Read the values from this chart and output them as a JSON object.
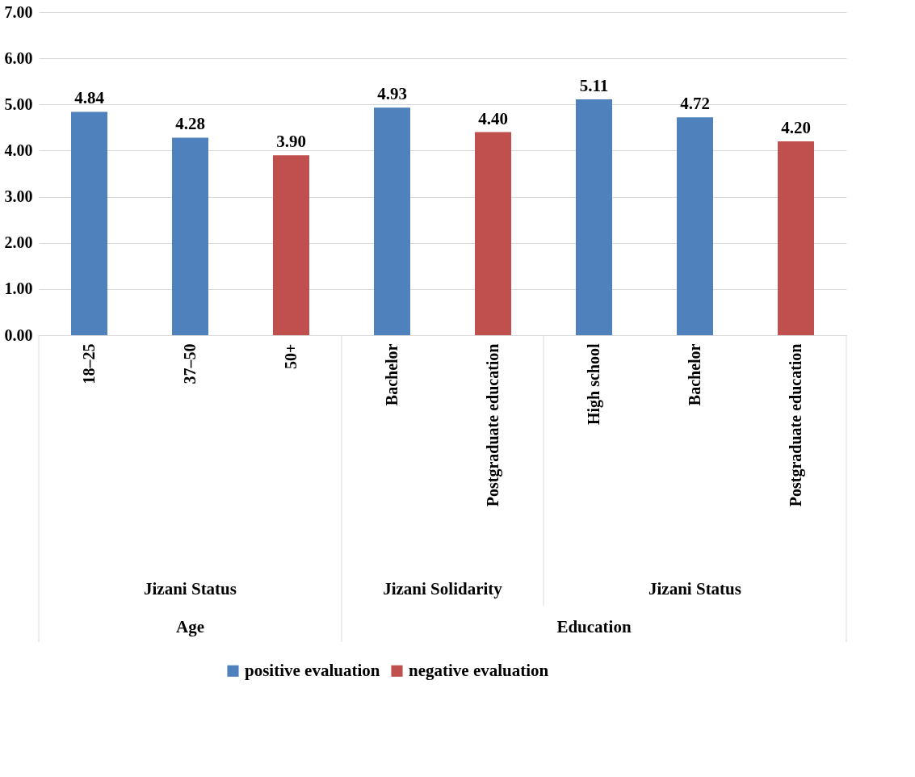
{
  "chart_data": {
    "type": "bar",
    "categories": [
      "18–25",
      "37–50",
      "50+",
      "Bachelor",
      "Postgraduate education",
      "High school",
      "Bachelor",
      "Postgraduate education"
    ],
    "series": [
      {
        "name": "positive evaluation",
        "color": "#4f81bd",
        "values": [
          4.84,
          4.28,
          null,
          4.93,
          null,
          5.11,
          4.72,
          null
        ],
        "value_labels": [
          "4.84",
          "4.28",
          null,
          "4.93",
          null,
          "5.11",
          "4.72",
          null
        ]
      },
      {
        "name": "negative evaluation",
        "color": "#c0504d",
        "values": [
          null,
          null,
          3.9,
          null,
          4.4,
          null,
          null,
          4.2
        ],
        "value_labels": [
          null,
          null,
          "3.90",
          null,
          "4.40",
          null,
          null,
          "4.20"
        ]
      }
    ],
    "ylim": [
      0,
      7
    ],
    "yticks": [
      {
        "value": 0,
        "label": "0.00"
      },
      {
        "value": 1,
        "label": "1.00"
      },
      {
        "value": 2,
        "label": "2.00"
      },
      {
        "value": 3,
        "label": "3.00"
      },
      {
        "value": 4,
        "label": "4.00"
      },
      {
        "value": 5,
        "label": "5.00"
      },
      {
        "value": 6,
        "label": "6.00"
      },
      {
        "value": 7,
        "label": "7.00"
      }
    ],
    "annotations": [
      "Jizani Status",
      "Jizani Solidarity",
      "Jizani Status",
      "Age",
      "Education"
    ],
    "grid": "y",
    "legend": "bottom"
  }
}
